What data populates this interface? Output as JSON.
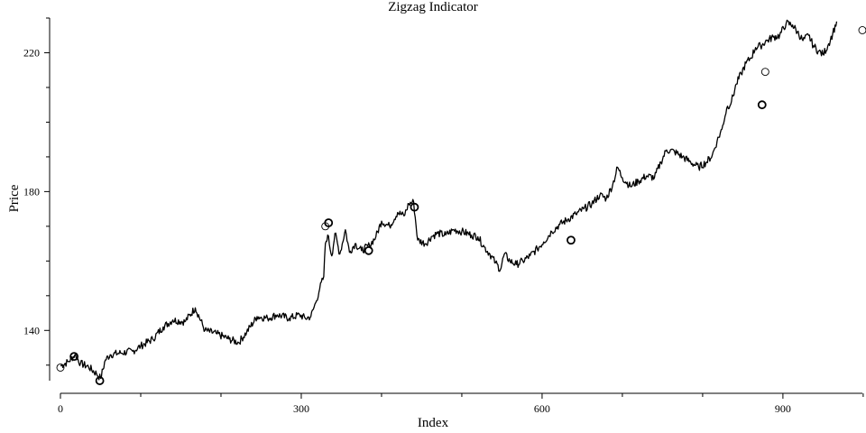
{
  "chart_data": {
    "type": "line",
    "title": "Zigzag Indicator",
    "xlabel": "Index",
    "ylabel": "Price",
    "xlim": [
      0,
      999
    ],
    "ylim": [
      125,
      230
    ],
    "x_ticks": [
      0,
      300,
      600,
      900
    ],
    "x_minor_ticks": [
      100,
      200,
      400,
      500,
      700,
      800,
      1000
    ],
    "y_ticks": [
      140,
      180,
      220
    ],
    "grid": false,
    "series": [
      {
        "style": "black line",
        "points": [
          [
            0,
            129.8
          ],
          [
            10,
            131.0
          ],
          [
            18,
            133.0
          ],
          [
            25,
            130.5
          ],
          [
            35,
            129.5
          ],
          [
            45,
            127.5
          ],
          [
            50,
            126.2
          ],
          [
            56,
            131.5
          ],
          [
            62,
            133.0
          ],
          [
            75,
            133.5
          ],
          [
            90,
            134.0
          ],
          [
            100,
            135.5
          ],
          [
            115,
            137.5
          ],
          [
            128,
            141.0
          ],
          [
            140,
            143.0
          ],
          [
            155,
            142.5
          ],
          [
            168,
            146.5
          ],
          [
            180,
            140.0
          ],
          [
            195,
            139.0
          ],
          [
            210,
            137.5
          ],
          [
            222,
            136.5
          ],
          [
            232,
            139.5
          ],
          [
            245,
            144.0
          ],
          [
            258,
            143.5
          ],
          [
            270,
            144.5
          ],
          [
            285,
            143.5
          ],
          [
            298,
            144.5
          ],
          [
            305,
            143.5
          ],
          [
            312,
            144.0
          ],
          [
            318,
            148.0
          ],
          [
            323,
            152.0
          ],
          [
            328,
            155.5
          ],
          [
            330,
            165.0
          ],
          [
            333,
            167.5
          ],
          [
            338,
            161.5
          ],
          [
            342,
            168.0
          ],
          [
            348,
            162.0
          ],
          [
            355,
            169.0
          ],
          [
            360,
            162.5
          ],
          [
            367,
            165.0
          ],
          [
            375,
            163.0
          ],
          [
            385,
            164.5
          ],
          [
            393,
            167.0
          ],
          [
            400,
            171.5
          ],
          [
            410,
            170.0
          ],
          [
            420,
            174.0
          ],
          [
            428,
            173.0
          ],
          [
            434,
            176.5
          ],
          [
            440,
            177.0
          ],
          [
            445,
            166.0
          ],
          [
            455,
            165.0
          ],
          [
            462,
            167.0
          ],
          [
            470,
            168.0
          ],
          [
            480,
            167.5
          ],
          [
            490,
            169.0
          ],
          [
            500,
            168.5
          ],
          [
            512,
            167.5
          ],
          [
            520,
            167.0
          ],
          [
            528,
            164.0
          ],
          [
            535,
            162.0
          ],
          [
            542,
            159.5
          ],
          [
            548,
            157.5
          ],
          [
            553,
            162.0
          ],
          [
            560,
            160.0
          ],
          [
            568,
            159.0
          ],
          [
            576,
            160.0
          ],
          [
            585,
            161.5
          ],
          [
            594,
            163.5
          ],
          [
            602,
            165.5
          ],
          [
            612,
            168.5
          ],
          [
            622,
            170.5
          ],
          [
            632,
            172.0
          ],
          [
            642,
            173.5
          ],
          [
            652,
            175.0
          ],
          [
            662,
            176.5
          ],
          [
            672,
            179.0
          ],
          [
            680,
            178.0
          ],
          [
            688,
            182.0
          ],
          [
            694,
            187.0
          ],
          [
            700,
            184.0
          ],
          [
            710,
            181.5
          ],
          [
            720,
            183.0
          ],
          [
            730,
            184.5
          ],
          [
            740,
            184.0
          ],
          [
            748,
            188.5
          ],
          [
            755,
            192.0
          ],
          [
            765,
            191.5
          ],
          [
            775,
            190.0
          ],
          [
            785,
            188.5
          ],
          [
            795,
            187.0
          ],
          [
            805,
            188.5
          ],
          [
            812,
            190.5
          ],
          [
            818,
            194.5
          ],
          [
            824,
            198.0
          ],
          [
            830,
            204.0
          ],
          [
            836,
            206.0
          ],
          [
            842,
            211.0
          ],
          [
            848,
            214.0
          ],
          [
            854,
            217.0
          ],
          [
            860,
            218.5
          ],
          [
            866,
            221.5
          ],
          [
            872,
            222.0
          ],
          [
            880,
            223.5
          ],
          [
            888,
            224.5
          ],
          [
            896,
            225.0
          ],
          [
            904,
            228.5
          ],
          [
            912,
            228.0
          ],
          [
            918,
            226.0
          ],
          [
            925,
            223.5
          ],
          [
            932,
            225.0
          ],
          [
            938,
            222.0
          ],
          [
            944,
            220.5
          ],
          [
            950,
            219.5
          ],
          [
            956,
            222.0
          ],
          [
            962,
            225.5
          ],
          [
            967,
            229.0
          ]
        ]
      },
      {
        "style": "thin open circles",
        "points": [
          [
            0,
            129.3
          ],
          [
            330,
            170.0
          ],
          [
            878,
            214.5
          ],
          [
            999,
            226.5
          ]
        ]
      },
      {
        "style": "bold open circles",
        "points": [
          [
            17,
            132.5
          ],
          [
            49,
            125.5
          ],
          [
            334,
            171.0
          ],
          [
            384,
            163.0
          ],
          [
            441,
            175.5
          ],
          [
            636,
            166.0
          ],
          [
            874,
            205.0
          ]
        ]
      }
    ]
  }
}
